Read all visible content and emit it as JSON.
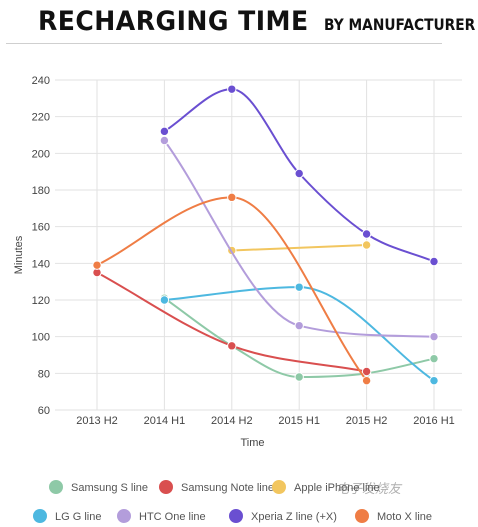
{
  "header": {
    "title_main": "RECHARGING TIME",
    "title_sub": "BY MANUFACTURER"
  },
  "watermark": "电子发烧友",
  "chart_data": {
    "type": "line",
    "categories": [
      "2013 H2",
      "2014 H1",
      "2014 H2",
      "2015 H1",
      "2015 H2",
      "2016 H1"
    ],
    "xlabel": "Time",
    "ylabel": "Minutes",
    "ylim": [
      60,
      240
    ],
    "yticks": [
      60,
      80,
      100,
      120,
      140,
      160,
      180,
      200,
      220,
      240
    ],
    "grid": true,
    "legend_position": "bottom",
    "series": [
      {
        "name": "Samsung S line",
        "color": "#8ec9a7",
        "values": [
          null,
          121,
          95,
          78,
          80,
          88
        ]
      },
      {
        "name": "Samsung Note line",
        "color": "#d94f4f",
        "values": [
          135,
          null,
          95,
          null,
          81,
          null
        ]
      },
      {
        "name": "Apple iPhone line",
        "color": "#f2c65f",
        "values": [
          null,
          null,
          147,
          null,
          150,
          null
        ]
      },
      {
        "name": "LG G line",
        "color": "#4db8e0",
        "values": [
          null,
          120,
          null,
          127,
          null,
          76
        ]
      },
      {
        "name": "HTC One line",
        "color": "#b39ddb",
        "values": [
          null,
          207,
          null,
          106,
          null,
          100
        ]
      },
      {
        "name": "Xperia Z line (+X)",
        "color": "#6a4fd1",
        "values": [
          null,
          212,
          235,
          189,
          156,
          141
        ]
      },
      {
        "name": "Moto X line",
        "color": "#ef7d45",
        "values": [
          139,
          null,
          176,
          null,
          76,
          null
        ]
      }
    ]
  }
}
